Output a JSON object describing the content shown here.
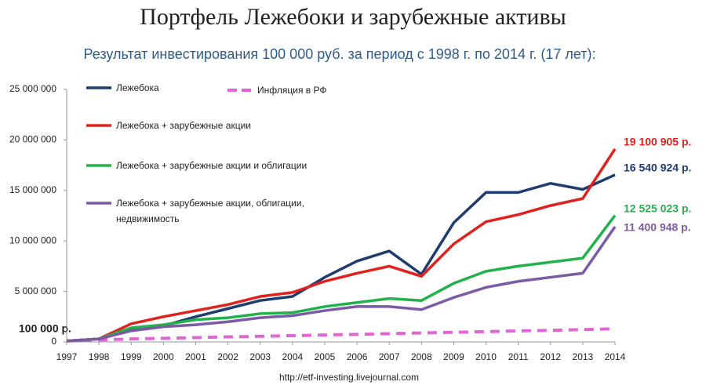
{
  "chart_data": {
    "type": "line",
    "title": "Портфель Лежебоки и зарубежные активы",
    "subtitle": "Результат инвестирования 100 000 руб.  за период с 1998 г. по 2014 г. (17 лет):",
    "x": [
      1997,
      1998,
      1999,
      2000,
      2001,
      2002,
      2003,
      2004,
      2005,
      2006,
      2007,
      2008,
      2009,
      2010,
      2011,
      2012,
      2013,
      2014
    ],
    "xlim": [
      1997,
      2014
    ],
    "xticks": [
      1997,
      1998,
      1999,
      2000,
      2001,
      2002,
      2003,
      2004,
      2005,
      2006,
      2007,
      2008,
      2009,
      2010,
      2011,
      2012,
      2013,
      2014
    ],
    "ylim": [
      0,
      25000000
    ],
    "yticks": [
      0,
      {
        "value": 5000000,
        "label": "5 000 000"
      },
      {
        "value": 10000000,
        "label": "10 000 000"
      },
      {
        "value": 15000000,
        "label": "15 000 000"
      },
      {
        "value": 20000000,
        "label": "20 000 000"
      },
      {
        "value": 25000000,
        "label": "25 000 000"
      }
    ],
    "grid": false,
    "series": [
      {
        "name": "Лежебока",
        "color": "#1f3c6e",
        "dash": false,
        "values": [
          100000,
          300000,
          1200000,
          1600000,
          2500000,
          3300000,
          4100000,
          4500000,
          6400000,
          8000000,
          9000000,
          6700000,
          11800000,
          14800000,
          14800000,
          15700000,
          15100000,
          16540924
        ],
        "value_labels": [
          null,
          null,
          null,
          null,
          null,
          null,
          null,
          null,
          null,
          null,
          null,
          null,
          null,
          null,
          null,
          null,
          null,
          "16 540 924 р."
        ]
      },
      {
        "name": "Инфляция в РФ",
        "color": "#e066d6",
        "dash": true,
        "values": [
          100000,
          200000,
          300000,
          360000,
          430000,
          500000,
          560000,
          620000,
          690000,
          750000,
          820000,
          890000,
          950000,
          1020000,
          1090000,
          1150000,
          1220000,
          1300000
        ]
      },
      {
        "name": "Лежебока + зарубежные акции",
        "color": "#e0211c",
        "dash": false,
        "values": [
          100000,
          300000,
          1800000,
          2500000,
          3100000,
          3700000,
          4500000,
          4900000,
          6000000,
          6800000,
          7500000,
          6500000,
          9700000,
          11900000,
          12600000,
          13500000,
          14200000,
          19100905
        ],
        "value_labels": [
          null,
          null,
          null,
          null,
          null,
          null,
          null,
          null,
          null,
          null,
          null,
          null,
          null,
          null,
          null,
          null,
          null,
          "19 100 905 р."
        ]
      },
      {
        "name": "Лежебока + зарубежные акции и облигации",
        "color": "#22b24c",
        "dash": false,
        "values": [
          100000,
          300000,
          1400000,
          1700000,
          2200000,
          2400000,
          2800000,
          2900000,
          3500000,
          3900000,
          4300000,
          4100000,
          5800000,
          7000000,
          7500000,
          7900000,
          8300000,
          12525023
        ],
        "value_labels": [
          null,
          null,
          null,
          null,
          null,
          null,
          null,
          null,
          null,
          null,
          null,
          null,
          null,
          null,
          null,
          null,
          null,
          "12 525 023 р."
        ]
      },
      {
        "name": "Лежебока + зарубежные акции, облигации, недвижимость",
        "color": "#7b5aa6",
        "dash": false,
        "values": [
          100000,
          300000,
          1100000,
          1500000,
          1700000,
          2000000,
          2400000,
          2600000,
          3100000,
          3500000,
          3500000,
          3200000,
          4400000,
          5400000,
          6000000,
          6400000,
          6800000,
          11400948
        ],
        "value_labels": [
          null,
          null,
          null,
          null,
          null,
          null,
          null,
          null,
          null,
          null,
          null,
          null,
          null,
          null,
          null,
          null,
          null,
          "11 400 948 р."
        ]
      }
    ],
    "annotation": "100 000 р.",
    "source": "http://etf-investing.livejournal.com"
  }
}
